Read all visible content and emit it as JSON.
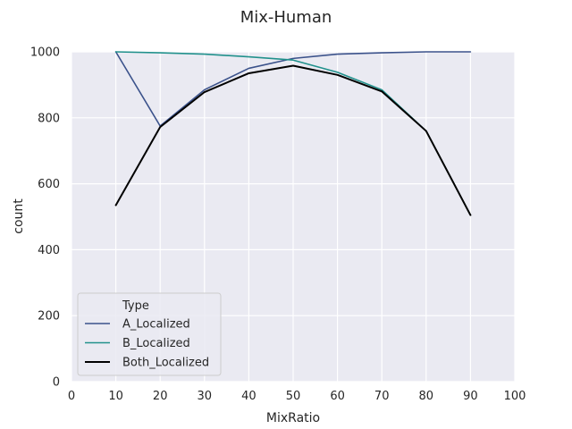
{
  "chart_data": {
    "type": "line",
    "title": "Mix-Human",
    "xlabel": "MixRatio",
    "ylabel": "count",
    "xlim": [
      0,
      100
    ],
    "ylim": [
      0,
      1000
    ],
    "xticks": [
      "0",
      "10",
      "20",
      "30",
      "40",
      "50",
      "60",
      "70",
      "80",
      "90",
      "100"
    ],
    "yticks": [
      "0",
      "200",
      "400",
      "600",
      "800",
      "1000"
    ],
    "grid": true,
    "legend": {
      "title": "Type",
      "placement": "lower-left"
    },
    "x": [
      10,
      20,
      30,
      40,
      50,
      60,
      70,
      80,
      90
    ],
    "series": [
      {
        "name": "A_Localized",
        "color": "#3b528b",
        "values": [
          1000,
          775,
          885,
          950,
          980,
          993,
          997,
          1000,
          1000
        ]
      },
      {
        "name": "B_Localized",
        "color": "#21918c",
        "values": [
          1000,
          997,
          993,
          985,
          975,
          938,
          885,
          760,
          505
        ]
      },
      {
        "name": "Both_Localized",
        "color": "#000000",
        "values": [
          535,
          772,
          878,
          935,
          958,
          930,
          880,
          760,
          505
        ]
      }
    ]
  }
}
